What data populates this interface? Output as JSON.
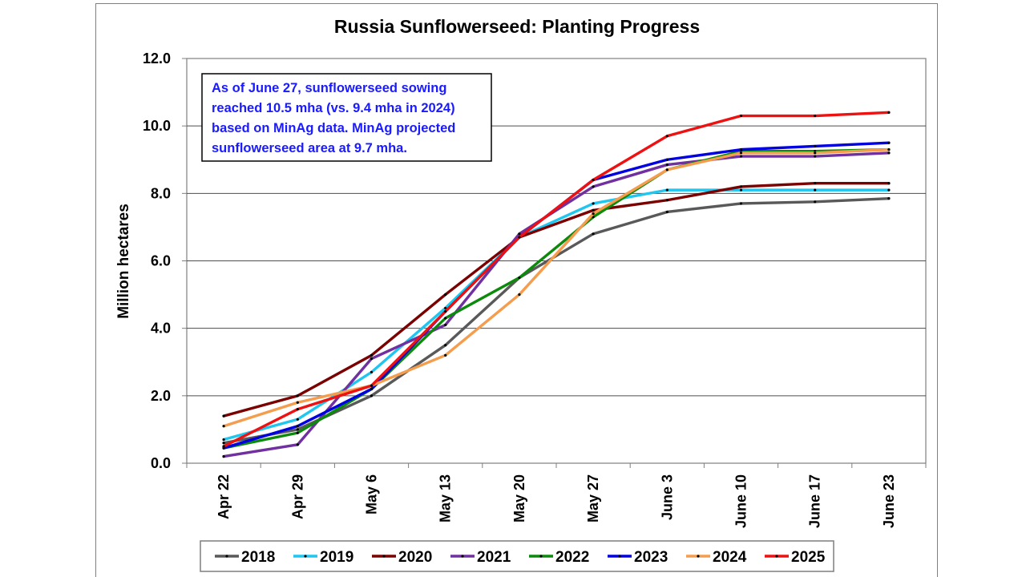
{
  "chart_data": {
    "type": "line",
    "title": "Russia Sunflowerseed: Planting Progress",
    "ylabel": "Million hectares",
    "xlabel": "",
    "ylim": [
      0,
      12
    ],
    "yticks": [
      "0.0",
      "2.0",
      "4.0",
      "6.0",
      "8.0",
      "10.0",
      "12.0"
    ],
    "grid": "horizontal",
    "legend_placement": "bottom",
    "categories": [
      "Apr 22",
      "Apr 29",
      "May 6",
      "May 13",
      "May 20",
      "May 27",
      "June 3",
      "June 10",
      "June 17",
      "June 23"
    ],
    "annotation": [
      "As of June 27, sunflowerseed sowing",
      "reached 10.5 mha (vs. 9.4 mha in 2024)",
      "based on MinAg data. MinAg projected",
      "sunflowerseed area at 9.7 mha."
    ],
    "series": [
      {
        "name": "2018",
        "color": "#595959",
        "values": [
          0.6,
          1.0,
          2.0,
          3.5,
          5.5,
          6.8,
          7.45,
          7.7,
          7.75,
          7.85
        ]
      },
      {
        "name": "2019",
        "color": "#1fc6f0",
        "values": [
          0.7,
          1.3,
          2.7,
          4.6,
          6.7,
          7.7,
          8.1,
          8.1,
          8.1,
          8.1
        ]
      },
      {
        "name": "2020",
        "color": "#7b0000",
        "values": [
          1.4,
          2.0,
          3.2,
          5.0,
          6.7,
          7.5,
          7.8,
          8.2,
          8.3,
          8.3
        ]
      },
      {
        "name": "2021",
        "color": "#7030a0",
        "values": [
          0.2,
          0.55,
          3.1,
          4.1,
          6.8,
          8.2,
          8.85,
          9.1,
          9.1,
          9.2
        ]
      },
      {
        "name": "2022",
        "color": "#0c8a0c",
        "values": [
          0.45,
          0.9,
          2.2,
          4.3,
          5.5,
          7.3,
          8.7,
          9.25,
          9.25,
          9.3
        ]
      },
      {
        "name": "2023",
        "color": "#0000e0",
        "values": [
          0.45,
          1.1,
          2.2,
          4.5,
          6.7,
          8.4,
          9.0,
          9.3,
          9.4,
          9.5
        ]
      },
      {
        "name": "2024",
        "color": "#f59d4e",
        "values": [
          1.1,
          1.8,
          2.3,
          3.2,
          5.0,
          7.4,
          8.7,
          9.2,
          9.2,
          9.3
        ]
      },
      {
        "name": "2025",
        "color": "#ee1111",
        "values": [
          0.5,
          1.6,
          2.3,
          4.5,
          6.7,
          8.4,
          9.7,
          10.3,
          10.3,
          10.4
        ]
      }
    ]
  }
}
